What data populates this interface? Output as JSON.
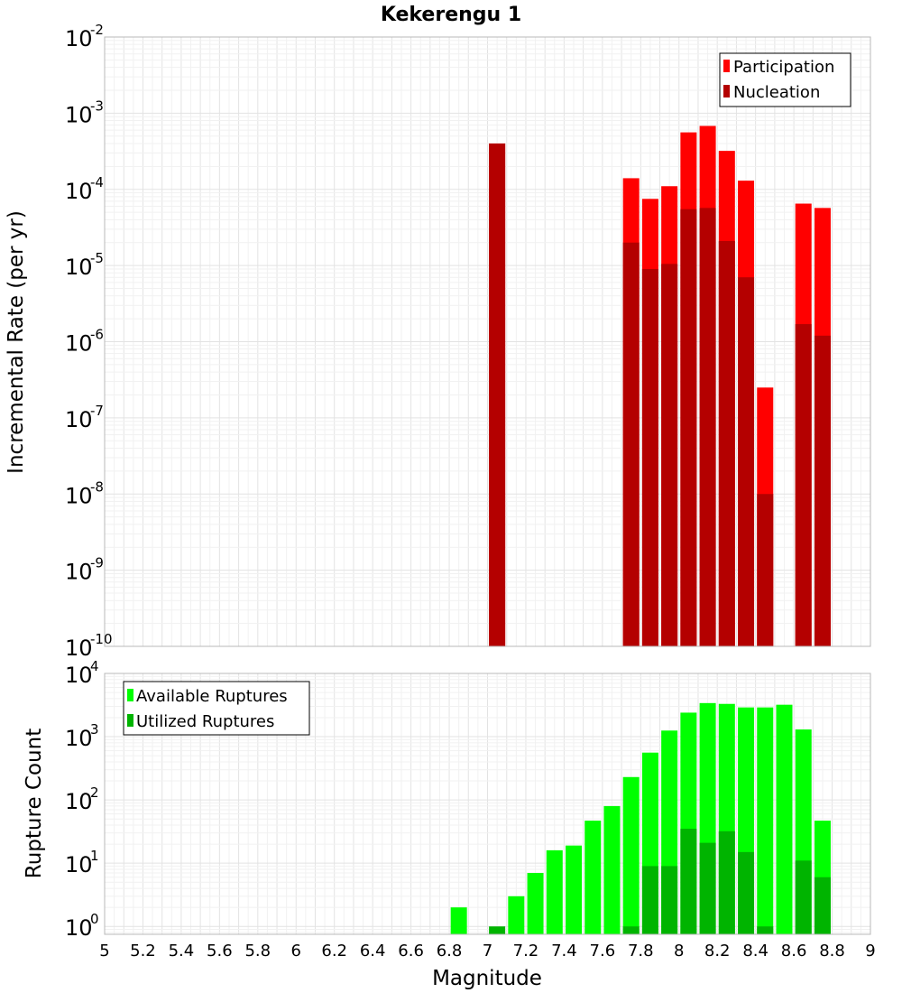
{
  "chart_data": [
    {
      "type": "bar",
      "title": "Kekerengu 1",
      "xlabel": "",
      "ylabel": "Incremental Rate (per yr)",
      "yscale": "log",
      "ylim": [
        1e-10,
        0.01
      ],
      "xlim": [
        5,
        9
      ],
      "y_ticks": [
        {
          "base": "10",
          "exp": "-2"
        },
        {
          "base": "10",
          "exp": "-3"
        },
        {
          "base": "10",
          "exp": "-4"
        },
        {
          "base": "10",
          "exp": "-5"
        },
        {
          "base": "10",
          "exp": "-6"
        },
        {
          "base": "10",
          "exp": "-7"
        },
        {
          "base": "10",
          "exp": "-8"
        },
        {
          "base": "10",
          "exp": "-9"
        },
        {
          "base": "10",
          "exp": "-10"
        }
      ],
      "legend_position": "top-right",
      "grid": true,
      "series": [
        {
          "name": "Participation",
          "color": "#ff0000",
          "x": [
            7.05,
            7.75,
            7.85,
            7.95,
            8.05,
            8.15,
            8.25,
            8.35,
            8.45,
            8.65,
            8.75
          ],
          "values": [
            0.0004,
            0.00014,
            7.5e-05,
            0.00011,
            0.00056,
            0.00068,
            0.00032,
            0.00013,
            2.5e-07,
            6.5e-05,
            5.7e-05
          ]
        },
        {
          "name": "Nucleation",
          "color": "#b40000",
          "x": [
            7.05,
            7.75,
            7.85,
            7.95,
            8.05,
            8.15,
            8.25,
            8.35,
            8.45,
            8.65,
            8.75
          ],
          "values": [
            0.0004,
            2e-05,
            9e-06,
            1.05e-05,
            5.5e-05,
            5.7e-05,
            2.1e-05,
            7e-06,
            1e-08,
            1.7e-06,
            1.2e-06
          ]
        }
      ]
    },
    {
      "type": "bar",
      "title": "",
      "xlabel": "Magnitude",
      "ylabel": "Rupture Count",
      "yscale": "log",
      "ylim": [
        0.75,
        10000
      ],
      "xlim": [
        5,
        9
      ],
      "x_ticks": [
        "5",
        "5.2",
        "5.4",
        "5.6",
        "5.8",
        "6",
        "6.2",
        "6.4",
        "6.6",
        "6.8",
        "7",
        "7.2",
        "7.4",
        "7.6",
        "7.8",
        "8",
        "8.2",
        "8.4",
        "8.6",
        "8.8",
        "9"
      ],
      "y_ticks": [
        {
          "base": "10",
          "exp": "4"
        },
        {
          "base": "10",
          "exp": "3"
        },
        {
          "base": "10",
          "exp": "2"
        },
        {
          "base": "10",
          "exp": "1"
        },
        {
          "base": "10",
          "exp": "0"
        }
      ],
      "legend_position": "top-left",
      "grid": true,
      "series": [
        {
          "name": "Available Ruptures",
          "color": "#00ff00",
          "x": [
            6.85,
            7.15,
            7.25,
            7.35,
            7.45,
            7.55,
            7.65,
            7.75,
            7.85,
            7.95,
            8.05,
            8.15,
            8.25,
            8.35,
            8.45,
            8.55,
            8.65,
            8.75
          ],
          "values": [
            2,
            3,
            7,
            16,
            19,
            47,
            80,
            230,
            560,
            1250,
            2400,
            3400,
            3300,
            2900,
            2900,
            3200,
            1300,
            47
          ]
        },
        {
          "name": "Utilized Ruptures",
          "color": "#00b400",
          "x": [
            7.05,
            7.75,
            7.85,
            7.95,
            8.05,
            8.15,
            8.25,
            8.35,
            8.45,
            8.65,
            8.75
          ],
          "values": [
            1,
            1,
            9,
            9,
            35,
            21,
            32,
            15,
            1,
            11,
            6
          ]
        }
      ]
    }
  ]
}
